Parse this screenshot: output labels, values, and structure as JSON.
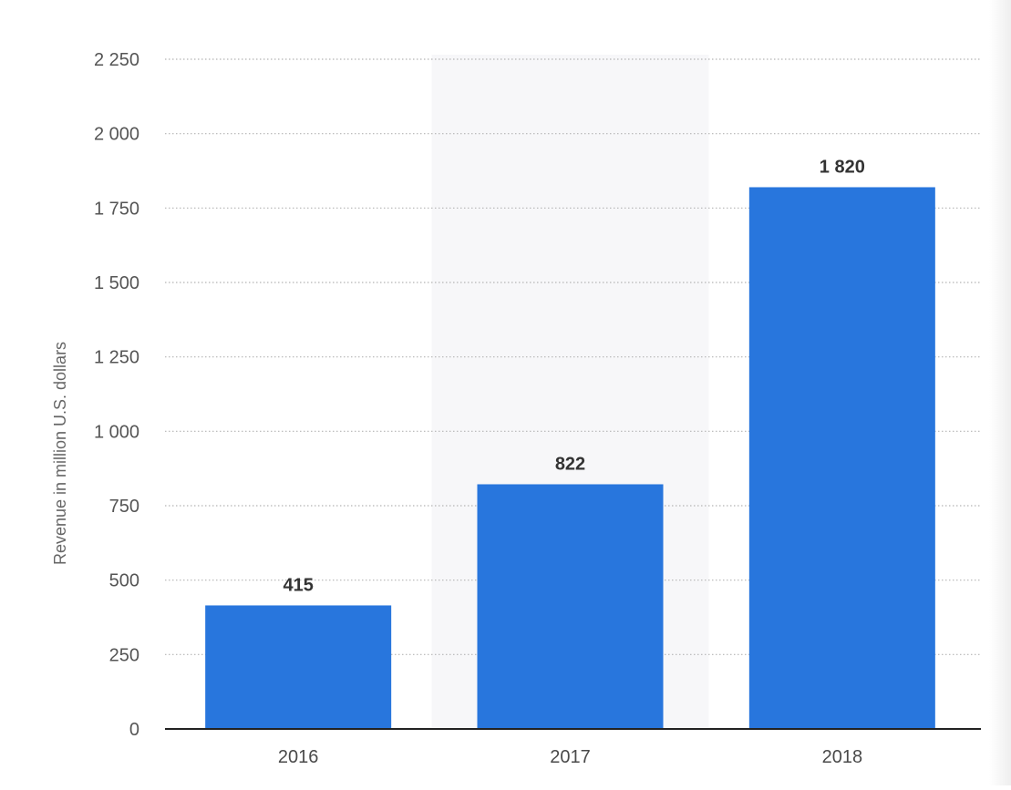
{
  "chart_data": {
    "type": "bar",
    "categories": [
      "2016",
      "2017",
      "2018"
    ],
    "values": [
      415,
      822,
      1820
    ],
    "value_labels": [
      "415",
      "822",
      "1 820"
    ],
    "title": "",
    "xlabel": "",
    "ylabel": "Revenue in million U.S. dollars",
    "ylim": [
      0,
      2250
    ],
    "yticks": [
      0,
      250,
      500,
      750,
      1000,
      1250,
      1500,
      1750,
      2000,
      2250
    ],
    "ytick_labels": [
      "0",
      "250",
      "500",
      "750",
      "1 000",
      "1 250",
      "1 500",
      "1 750",
      "2 000",
      "2 250"
    ],
    "grid": true,
    "legend": "none",
    "highlighted_category": "2017",
    "colors": {
      "bar": "#2876dd",
      "highlight_band": "#f7f7f9",
      "grid": "#b5b5b5",
      "baseline": "#222222"
    }
  }
}
